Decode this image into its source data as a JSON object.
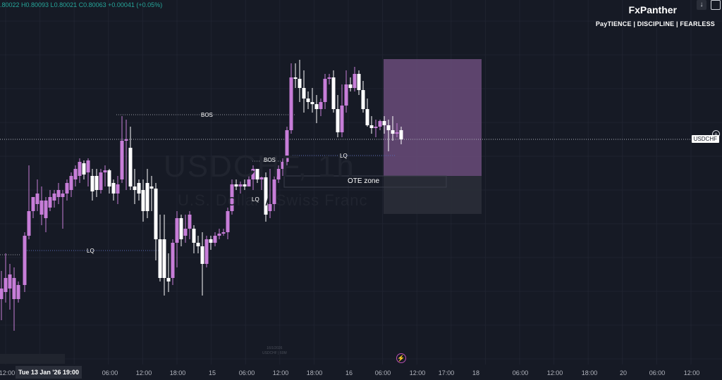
{
  "header": {
    "ohlc": ".80022 H0.80093 L0.80021 C0.80063 +0.00041 (+0.05%)"
  },
  "brand": {
    "name": "FxPanther",
    "tagline": "PayTIENCE  |  DISCIPLINE  |  FEARLESS"
  },
  "watermark": {
    "symbol": "USDCHF, 1h",
    "description": "U.S. Dollar / Swiss Franc"
  },
  "price_scale": {
    "current_label": "USDCHF"
  },
  "annotations": {
    "bos_upper": "BOS",
    "bos_lower": "BOS",
    "lq_left": "LQ",
    "lq_mid": "LQ",
    "lq_right": "LQ",
    "ote_zone": "OTE zone"
  },
  "time_axis": {
    "ticks": [
      "12:00",
      "06:00",
      "12:00",
      "18:00",
      "15",
      "06:00",
      "12:00",
      "18:00",
      "16",
      "06:00",
      "12:00",
      "17:00",
      "18",
      "06:00",
      "12:00",
      "18:00",
      "20",
      "06:00",
      "12:00"
    ],
    "crosshair_date": "Tue 13 Jan '26   19:00"
  },
  "footer_info": {
    "line1": "16/1/2026",
    "line2": "USDCHF | 60M"
  },
  "colors": {
    "background": "#161a25",
    "bull_candle": "#c77dd8",
    "bear_candle": "#ffffff",
    "ote_box": "#6a4c7a",
    "accent": "#b84fb0"
  },
  "icons": {
    "bolt": "lightning-icon",
    "plus": "plus-circle-icon"
  }
}
